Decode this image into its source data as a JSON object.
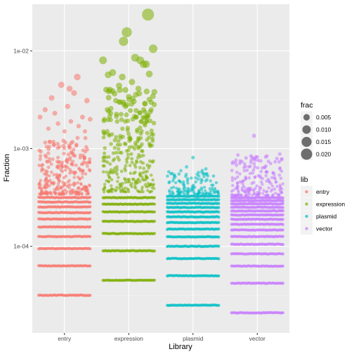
{
  "chart_data": {
    "type": "scatter",
    "title": "",
    "xlabel": "Library",
    "ylabel": "Fraction",
    "y_scale": "log10",
    "ylim": [
      1.3e-05,
      0.03
    ],
    "y_ticks": [
      {
        "value": 0.0001,
        "label": "1e-04"
      },
      {
        "value": 0.001,
        "label": "1e-03"
      },
      {
        "value": 0.01,
        "label": "1e-02"
      }
    ],
    "categories": [
      "entry",
      "expression",
      "plasmid",
      "vector"
    ],
    "grid": true,
    "legend_position": "right",
    "size_legend": {
      "title": "frac",
      "entries": [
        {
          "value": 0.005,
          "label": "0.005"
        },
        {
          "value": 0.01,
          "label": "0.010"
        },
        {
          "value": 0.015,
          "label": "0.015"
        },
        {
          "value": 0.02,
          "label": "0.020"
        }
      ]
    },
    "color_legend": {
      "title": "lib",
      "entries": [
        {
          "label": "entry",
          "color": "#F8766D"
        },
        {
          "label": "expression",
          "color": "#7CAE00"
        },
        {
          "label": "plasmid",
          "color": "#00BFC4"
        },
        {
          "label": "vector",
          "color": "#C77CFF"
        }
      ]
    },
    "series": [
      {
        "name": "entry",
        "color": "#F8766D",
        "band_values": [
          3.16e-05,
          6.31e-05,
          9.48e-05,
          0.000126,
          0.000158,
          0.00019,
          0.000221,
          0.000253,
          0.000284,
          0.000316
        ],
        "scatter_range": [
          0.00034,
          0.0013
        ],
        "scatter_count": 300,
        "highlight_points": [
          {
            "x": 0.2,
            "y": 0.0054
          },
          {
            "x": -0.05,
            "y": 0.0045
          },
          {
            "x": 0.08,
            "y": 0.0041
          },
          {
            "x": 0.15,
            "y": 0.0037
          },
          {
            "x": -0.2,
            "y": 0.0033
          },
          {
            "x": 0.35,
            "y": 0.0031
          },
          {
            "x": 0.05,
            "y": 0.0027
          },
          {
            "x": -0.3,
            "y": 0.0025
          },
          {
            "x": -0.15,
            "y": 0.0023
          },
          {
            "x": 0.28,
            "y": 0.0021
          },
          {
            "x": -0.38,
            "y": 0.0021
          },
          {
            "x": 0.4,
            "y": 0.002
          },
          {
            "x": 0.1,
            "y": 0.0019
          },
          {
            "x": -0.1,
            "y": 0.0018
          },
          {
            "x": 0.22,
            "y": 0.0017
          },
          {
            "x": -0.25,
            "y": 0.0016
          },
          {
            "x": 0.0,
            "y": 0.0015
          },
          {
            "x": 0.32,
            "y": 0.0015
          }
        ]
      },
      {
        "name": "expression",
        "color": "#7CAE00",
        "band_values": [
          4.5e-05,
          9e-05,
          0.000135,
          0.00018,
          0.000225,
          0.00027,
          0.000315
        ],
        "scatter_range": [
          0.00036,
          0.004
        ],
        "scatter_count": 300,
        "highlight_points": [
          {
            "x": 0.3,
            "y": 0.0235
          },
          {
            "x": -0.03,
            "y": 0.0155
          },
          {
            "x": -0.08,
            "y": 0.0125
          },
          {
            "x": 0.38,
            "y": 0.0105
          },
          {
            "x": 0.1,
            "y": 0.0085
          },
          {
            "x": 0.18,
            "y": 0.008
          },
          {
            "x": -0.4,
            "y": 0.008
          },
          {
            "x": 0.23,
            "y": 0.0073
          },
          {
            "x": 0.27,
            "y": 0.0073
          },
          {
            "x": -0.25,
            "y": 0.006
          },
          {
            "x": 0.32,
            "y": 0.0058
          },
          {
            "x": -0.32,
            "y": 0.0057
          },
          {
            "x": -0.1,
            "y": 0.0054
          },
          {
            "x": 0.05,
            "y": 0.0048
          },
          {
            "x": -0.15,
            "y": 0.0044
          },
          {
            "x": 0.15,
            "y": 0.0041
          },
          {
            "x": -0.35,
            "y": 0.004
          },
          {
            "x": 0.4,
            "y": 0.0038
          },
          {
            "x": 0.0,
            "y": 0.0034
          },
          {
            "x": -0.2,
            "y": 0.0031
          },
          {
            "x": 0.25,
            "y": 0.0029
          },
          {
            "x": -0.05,
            "y": 0.0027
          },
          {
            "x": 0.35,
            "y": 0.0025
          },
          {
            "x": -0.28,
            "y": 0.0023
          },
          {
            "x": 0.12,
            "y": 0.0021
          },
          {
            "x": -0.38,
            "y": 0.002
          },
          {
            "x": 0.2,
            "y": 0.0019
          }
        ]
      },
      {
        "name": "plasmid",
        "color": "#00BFC4",
        "band_values": [
          2.5e-05,
          5e-05,
          7.5e-05,
          0.0001,
          0.000125,
          0.00015,
          0.000175,
          0.0002,
          0.000225,
          0.00025,
          0.000275,
          0.0003,
          0.000325
        ],
        "scatter_range": [
          0.00034,
          0.0006
        ],
        "scatter_count": 130,
        "highlight_points": [
          {
            "x": 0.0,
            "y": 0.00081
          },
          {
            "x": -0.1,
            "y": 0.00065
          },
          {
            "x": 0.2,
            "y": 0.00062
          }
        ]
      },
      {
        "name": "vector",
        "color": "#C77CFF",
        "band_values": [
          2.09e-05,
          4.19e-05,
          6.28e-05,
          8.38e-05,
          0.000105,
          0.000126,
          0.000147,
          0.000168,
          0.000189,
          0.000209,
          0.00023,
          0.000251,
          0.000272,
          0.000293,
          0.000314
        ],
        "scatter_range": [
          0.00033,
          0.00085
        ],
        "scatter_count": 190,
        "highlight_points": [
          {
            "x": -0.05,
            "y": 0.00135
          },
          {
            "x": 0.35,
            "y": 0.00088
          },
          {
            "x": -0.3,
            "y": 0.00086
          },
          {
            "x": 0.15,
            "y": 0.00084
          },
          {
            "x": 0.0,
            "y": 0.00082
          }
        ]
      }
    ]
  }
}
